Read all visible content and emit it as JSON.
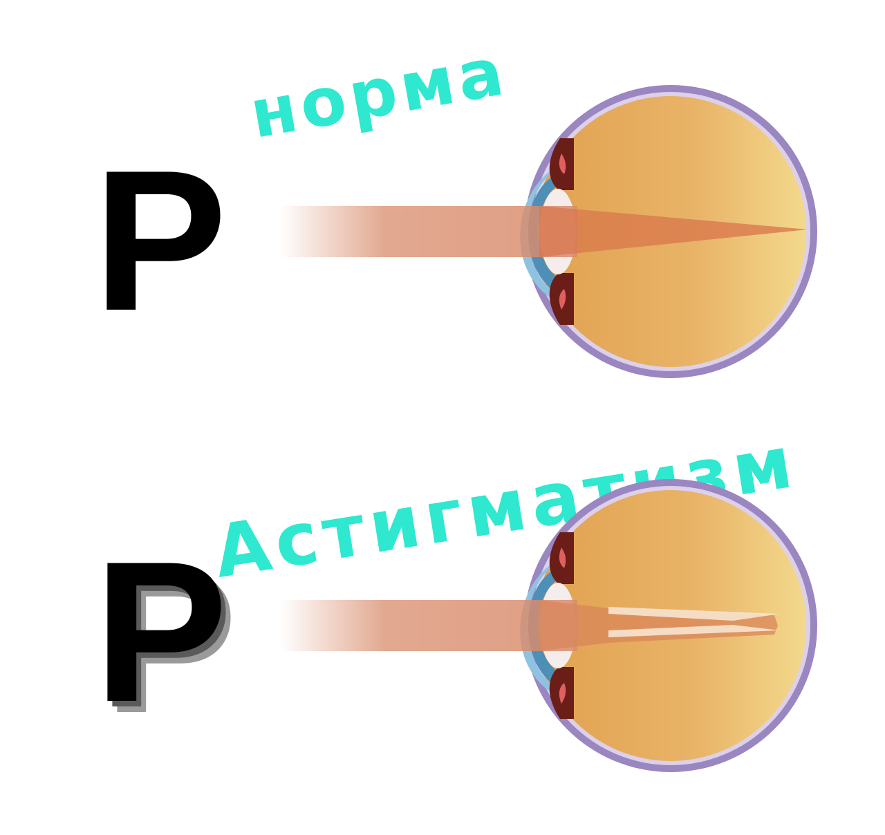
{
  "labels": {
    "normal": "норма",
    "astigmatism": "Астигматизм"
  },
  "test_letter": "P",
  "colors": {
    "handwriting": "#2ee8cf",
    "letter": "#000000",
    "beam": "#d88a6a",
    "eyeball_front": "#e0a050",
    "eyeball_back": "#f2d98a",
    "sclera": "#9a86c0",
    "cornea": "#8fc2e0"
  },
  "panels": [
    {
      "id": "normal",
      "letter_blurred": false,
      "focus": "single point on retina"
    },
    {
      "id": "astigmatism",
      "letter_blurred": true,
      "focus": "split focal lines"
    }
  ]
}
